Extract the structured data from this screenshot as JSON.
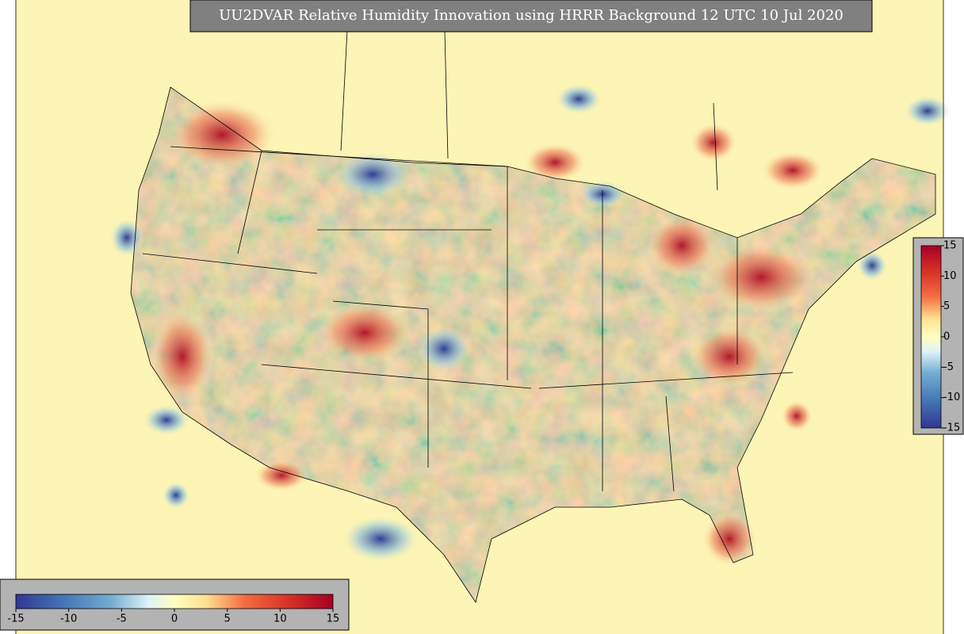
{
  "title": "UU2DVAR Relative Humidity Innovation using HRRR Background 12 UTC 10 Jul 2020",
  "colorbars": [
    {
      "orientation": "horizontal",
      "lim": [
        -15,
        15
      ],
      "ticks": [
        -15,
        -10,
        -5,
        0,
        5,
        10,
        15
      ]
    },
    {
      "orientation": "vertical",
      "lim": [
        -15,
        15
      ],
      "ticks": [
        -15,
        -10,
        -5,
        0,
        5,
        10,
        15
      ]
    }
  ]
}
